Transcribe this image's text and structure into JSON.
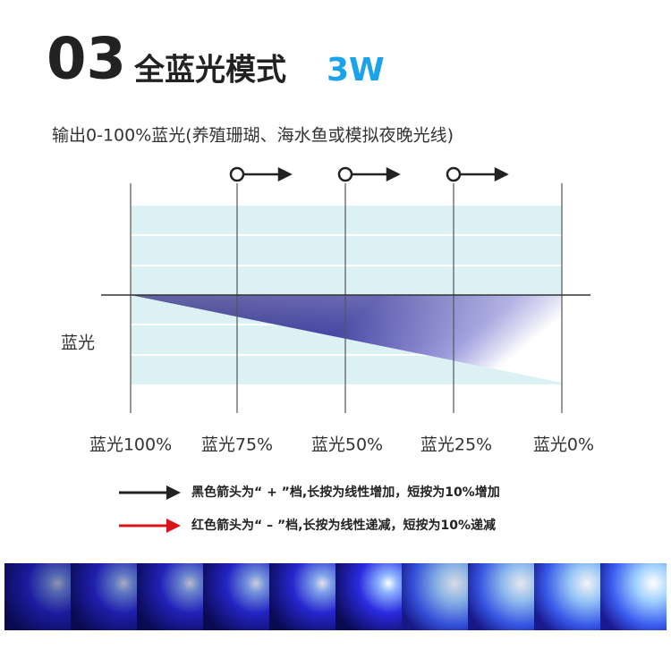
{
  "header": {
    "number": "03",
    "title": "全蓝光模式",
    "power": "3W"
  },
  "subtitle": "输出0-100%蓝光(养殖珊瑚、海水鱼或模拟夜晚光线)",
  "row_label": "蓝光",
  "stages": [
    "蓝光100%",
    "蓝光75%",
    "蓝光50%",
    "蓝光25%",
    "蓝光0%"
  ],
  "notes": [
    "黑色箭头为“ + ”档,长按为线性增加，短按为10%增加",
    "红色箭头为“ – ”档,长按为线性递减，短按为10%递减"
  ]
}
